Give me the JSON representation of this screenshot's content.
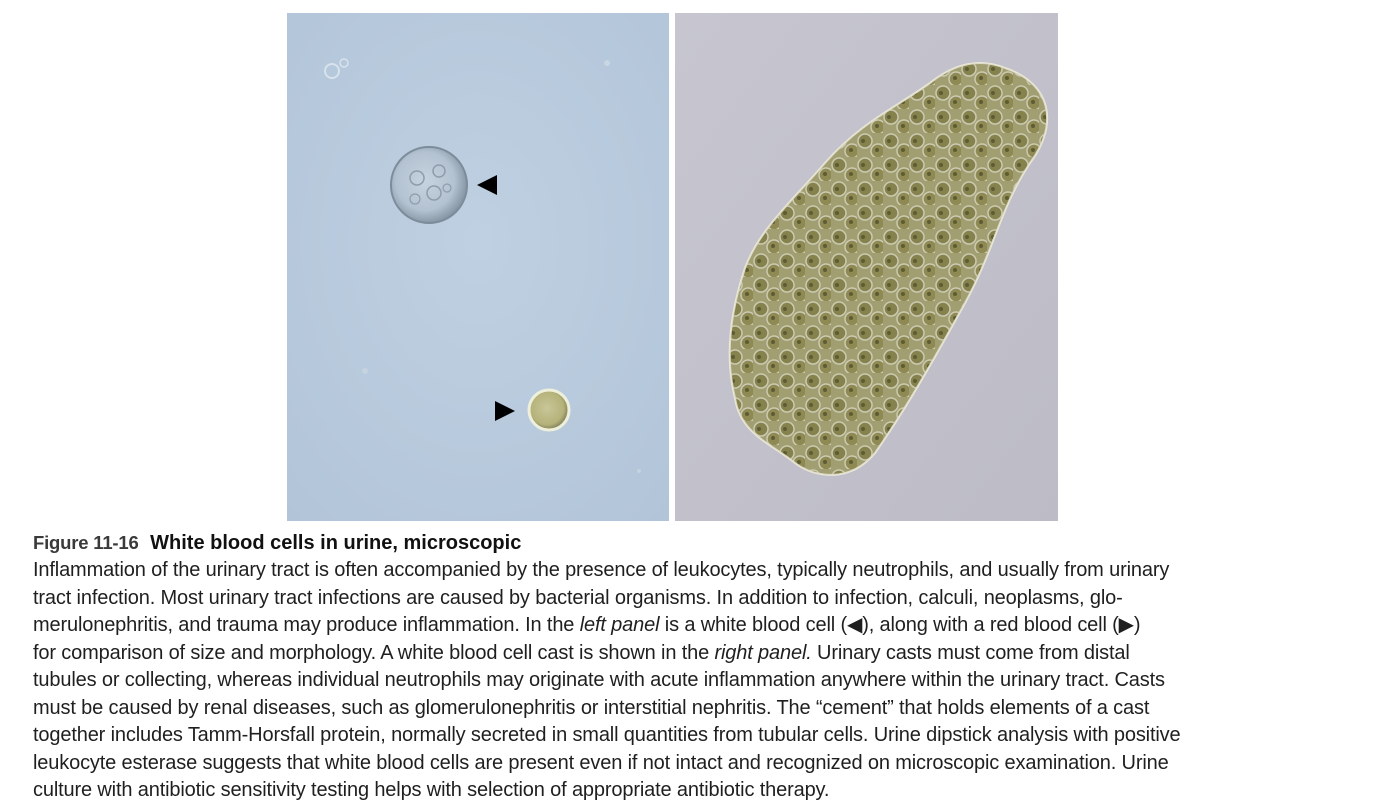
{
  "figure": {
    "label": "Figure 11-16",
    "title": "White blood cells in urine, microscopic",
    "panels": {
      "left": {
        "background": "#b9cbde",
        "white_cell_arrow": "◀",
        "red_cell_arrow": "▶"
      },
      "right": {
        "background": "#c5c5ce",
        "cast_color": "#8f8a55"
      }
    }
  },
  "caption": {
    "lines": [
      {
        "segments": [
          "Inflammation of the urinary tract is often accompanied by the presence of leukocytes, typically neutrophils, and usually from urinary"
        ]
      },
      {
        "segments": [
          "tract infection. Most urinary tract infections are caused by bacterial organisms. In addition to infection, calculi, neoplasms, glo-"
        ]
      },
      {
        "segments": [
          "merulonephritis, and trauma may produce inflammation. In the ",
          "left  panel",
          " is a white blood cell (◀), along with a red blood cell (▶)"
        ]
      },
      {
        "segments": [
          "for comparison of size and morphology. A white blood cell cast is shown in the ",
          "right  panel.",
          " Urinary casts must come from distal"
        ]
      },
      {
        "segments": [
          "tubules or collecting, whereas individual neutrophils may originate with acute inflammation anywhere within the urinary tract. Casts"
        ]
      },
      {
        "segments": [
          "must be caused by renal diseases, such as glomerulonephritis or interstitial nephritis. The “cement” that holds elements of a cast"
        ]
      },
      {
        "segments": [
          "together includes Tamm-Horsfall protein, normally secreted in small quantities from tubular cells. Urine dipstick analysis with positive"
        ]
      },
      {
        "segments": [
          "leukocyte esterase suggests that white blood cells are present even if not intact and recognized on microscopic examination. Urine"
        ]
      },
      {
        "segments": [
          "culture with antibiotic sensitivity testing helps with selection of appropriate antibiotic therapy."
        ]
      }
    ]
  }
}
